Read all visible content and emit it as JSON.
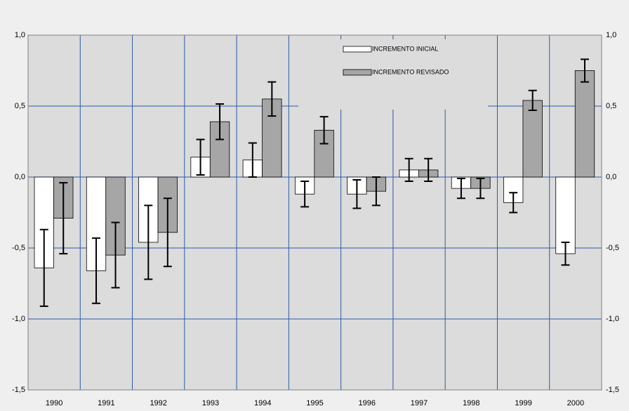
{
  "chart_data": {
    "type": "bar",
    "categories": [
      "1990",
      "1991",
      "1992",
      "1993",
      "1994",
      "1995",
      "1996",
      "1997",
      "1998",
      "1999",
      "2000"
    ],
    "series": [
      {
        "name": "INCREMENTO INICIAL",
        "color": "#ffffff",
        "values": [
          -0.64,
          -0.66,
          -0.46,
          0.14,
          0.12,
          -0.12,
          -0.12,
          0.05,
          -0.08,
          -0.18,
          -0.54
        ],
        "errors": [
          0.27,
          0.23,
          0.26,
          0.125,
          0.12,
          0.09,
          0.1,
          0.08,
          0.07,
          0.07,
          0.08
        ]
      },
      {
        "name": "INCREMENTO REVISADO",
        "color": "#a6a6a6",
        "values": [
          -0.29,
          -0.55,
          -0.39,
          0.39,
          0.55,
          0.33,
          -0.1,
          0.05,
          -0.08,
          0.54,
          0.75
        ],
        "errors": [
          0.25,
          0.23,
          0.24,
          0.125,
          0.12,
          0.095,
          0.1,
          0.08,
          0.07,
          0.07,
          0.08
        ]
      }
    ],
    "ylim": [
      -1.5,
      1.0
    ],
    "yticks": [
      {
        "value": -1.5,
        "label": "-1,5"
      },
      {
        "value": -1.0,
        "label": "-1,0"
      },
      {
        "value": -0.5,
        "label": "-0,5"
      },
      {
        "value": 0.0,
        "label": "0,0"
      },
      {
        "value": 0.5,
        "label": "0,5"
      },
      {
        "value": 1.0,
        "label": "1,0"
      }
    ],
    "grid": true,
    "legend": "top"
  }
}
